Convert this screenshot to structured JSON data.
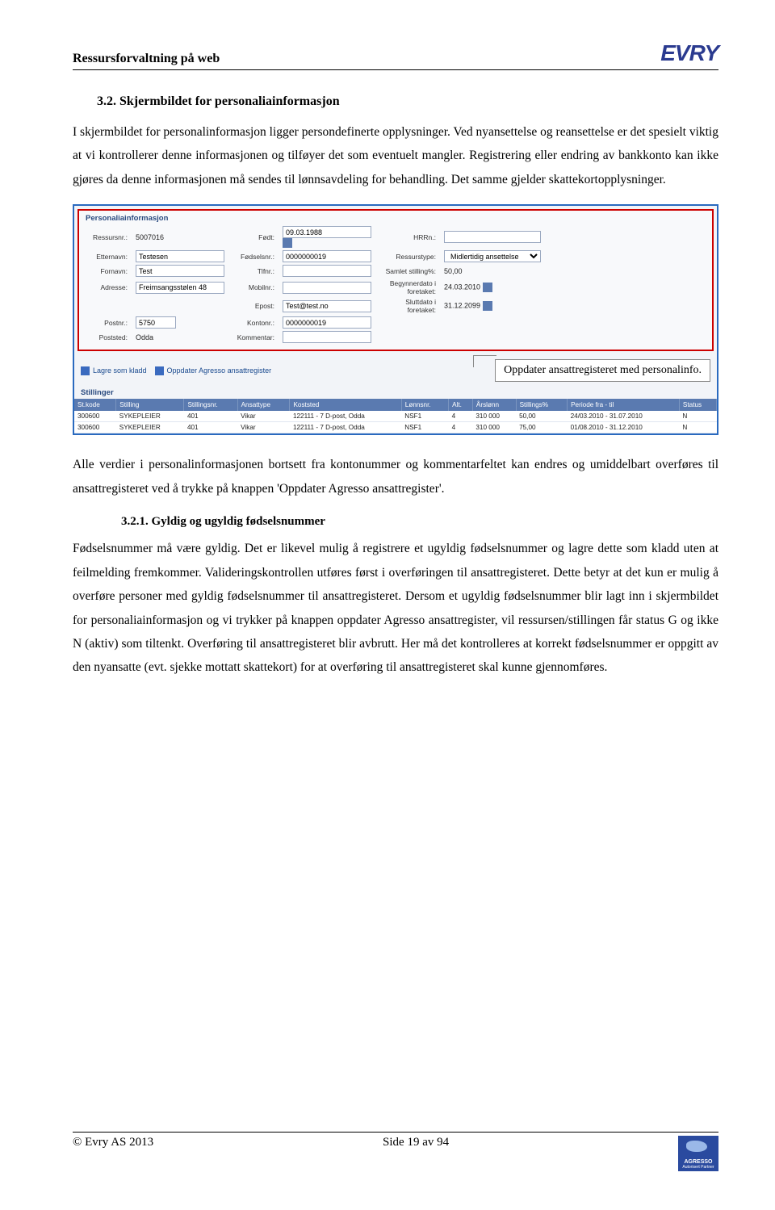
{
  "header": {
    "doc_title": "Ressursforvaltning på web",
    "logo_text": "EVRY"
  },
  "section_3_2": {
    "number_title": "3.2. Skjermbildet for personaliainformasjon",
    "para1": "I skjermbildet for personalinformasjon ligger persondefinerte opplysninger.  Ved nyansettelse og reansettelse er det spesielt viktig at vi kontrollerer denne informasjonen og tilføyer det som eventuelt mangler.   Registrering eller endring av bankkonto kan ikke gjøres da denne informasjonen må sendes til lønnsavdeling for behandling. Det samme gjelder skattekortopplysninger.",
    "para2": "Alle verdier i personalinformasjonen bortsett fra kontonummer og kommentarfeltet kan endres og umiddelbart overføres til ansattregisteret ved å trykke på knappen 'Oppdater Agresso ansattregister'."
  },
  "section_3_2_1": {
    "number_title": "3.2.1. Gyldig og ugyldig fødselsnummer",
    "para": "Fødselsnummer må være gyldig. Det er likevel mulig å registrere et ugyldig fødselsnummer og lagre dette som kladd uten at feilmelding fremkommer. Valideringskontrollen utføres først i overføringen til ansattregisteret. Dette betyr at det kun er mulig å overføre personer med gyldig fødselsnummer til ansattregisteret. Dersom et ugyldig fødselsnummer blir lagt inn i skjermbildet for personaliainformasjon og vi trykker på knappen oppdater Agresso ansattregister, vil ressursen/stillingen får status G og ikke N (aktiv) som tiltenkt. Overføring til ansattregisteret blir avbrutt. Her må det kontrolleres at korrekt fødselsnummer er oppgitt av den nyansatte (evt. sjekke mottatt skattekort) for at overføring til ansattregisteret skal kunne gjennomføres."
  },
  "screenshot": {
    "panel_title": "Personaliainformasjon",
    "labels": {
      "ressursnr": "Ressursnr.:",
      "etternavn": "Etternavn:",
      "fornavn": "Fornavn:",
      "adresse": "Adresse:",
      "postnr": "Postnr.:",
      "poststed": "Poststed:",
      "fodt": "Født:",
      "fodselsnr": "Fødselsnr.:",
      "tlfnr": "Tlfnr.:",
      "mobilnr": "Mobilnr.:",
      "epost": "Epost:",
      "kontonr": "Kontonr.:",
      "kommentar": "Kommentar:",
      "hrrn": "HRRn.:",
      "ressurstype": "Ressurstype:",
      "samlet_stilling": "Samlet stilling%:",
      "begynnerdato": "Begynnerdato i foretaket:",
      "sluttdato": "Sluttdato i foretaket:"
    },
    "values": {
      "ressursnr": "5007016",
      "etternavn": "Testesen",
      "fornavn": "Test",
      "adresse": "Freimsangsstølen 48",
      "postnr": "5750",
      "poststed": "Odda",
      "fodt": "09.03.1988",
      "fodselsnr": "0000000019",
      "epost": "Test@test.no",
      "kontonr": "0000000019",
      "ressurstype": "Midlertidig ansettelse",
      "samlet_stilling": "50,00",
      "begynnerdato": "24.03.2010",
      "sluttdato": "31.12.2099"
    },
    "toolbar": {
      "lagre": "Lagre som kladd",
      "oppdater": "Oppdater Agresso ansattregister"
    },
    "callout": "Oppdater ansattregisteret med personalinfo.",
    "stillinger_title": "Stillinger",
    "table": {
      "columns": [
        "St.kode",
        "Stilling",
        "Stillingsnr.",
        "Ansattype",
        "Koststed",
        "Lønnsnr.",
        "Alt.",
        "Årslønn",
        "Stillings%",
        "Periode fra - til",
        "Status"
      ],
      "rows": [
        [
          "300600",
          "SYKEPLEIER",
          "401",
          "Vikar",
          "122111 - 7 D-post, Odda",
          "NSF1",
          "4",
          "310 000",
          "50,00",
          "24/03.2010 - 31.07.2010",
          "N"
        ],
        [
          "300600",
          "SYKEPLEIER",
          "401",
          "Vikar",
          "122111 - 7 D-post, Odda",
          "NSF1",
          "4",
          "310 000",
          "75,00",
          "01/08.2010 - 31.12.2010",
          "N"
        ]
      ]
    }
  },
  "footer": {
    "copyright": "© Evry AS 2013",
    "page": "Side 19 av 94",
    "agresso_line1": "AGRESSO",
    "agresso_line2": "Autorisert Partner"
  }
}
